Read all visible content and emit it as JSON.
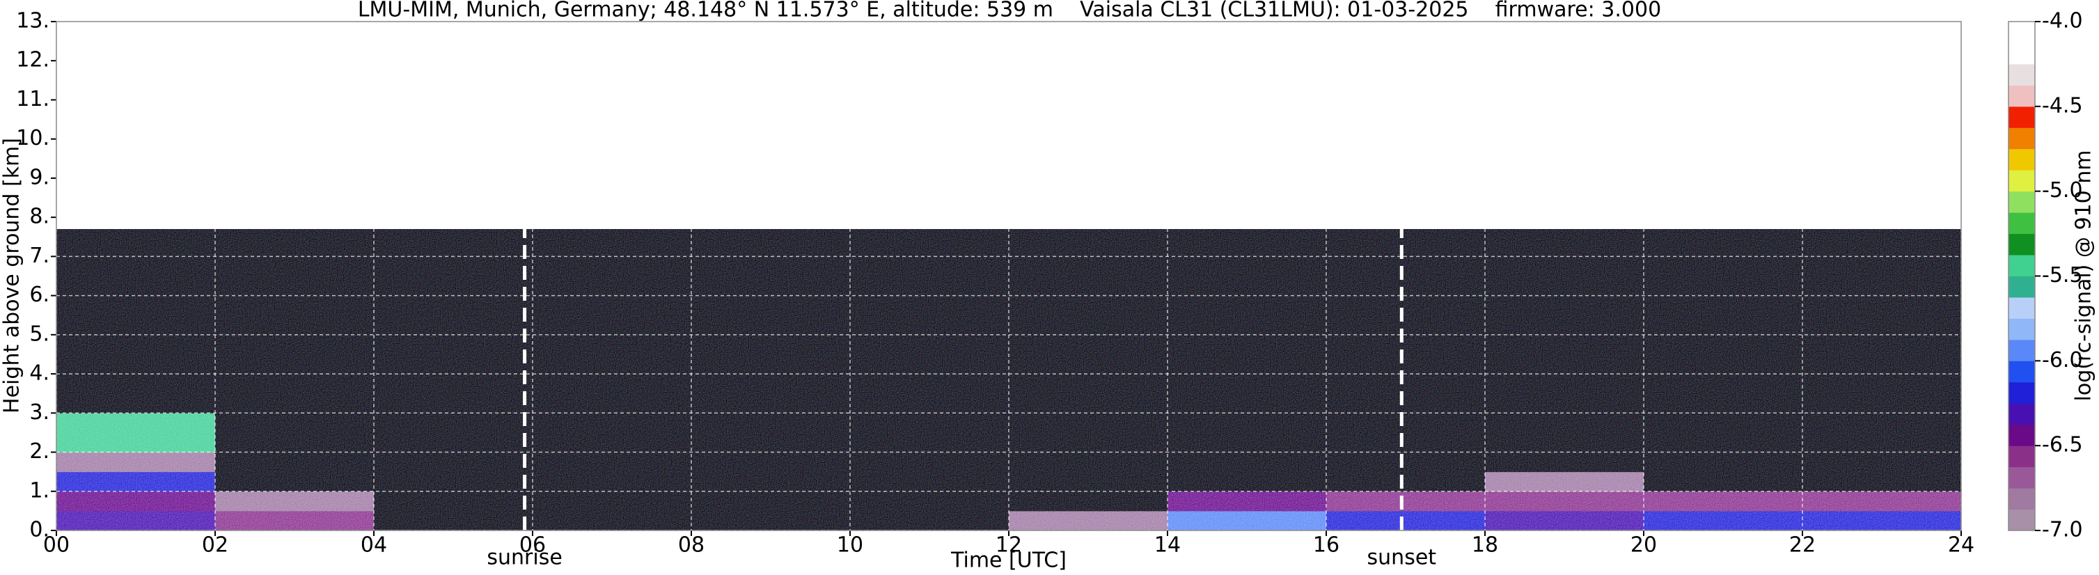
{
  "chart_data": {
    "type": "heatmap",
    "title": "LMU-MIM, Munich, Germany; 48.148° N 11.573° E, altitude: 539 m    Vaisala CL31 (CL31LMU): 01-03-2025    firmware: 3.000",
    "xlabel": "Time [UTC]",
    "ylabel": "Height above ground [km]",
    "xlim": [
      0,
      24
    ],
    "ylim": [
      0,
      13
    ],
    "xticks": [
      {
        "value": 0,
        "label": "00"
      },
      {
        "value": 2,
        "label": "02"
      },
      {
        "value": 4,
        "label": "04"
      },
      {
        "value": 6,
        "label": "06"
      },
      {
        "value": 8,
        "label": "08"
      },
      {
        "value": 10,
        "label": "10"
      },
      {
        "value": 12,
        "label": "12"
      },
      {
        "value": 14,
        "label": "14"
      },
      {
        "value": 16,
        "label": "16"
      },
      {
        "value": 18,
        "label": "18"
      },
      {
        "value": 20,
        "label": "20"
      },
      {
        "value": 22,
        "label": "22"
      },
      {
        "value": 24,
        "label": "24"
      }
    ],
    "yticks": [
      {
        "value": 0,
        "label": "0."
      },
      {
        "value": 1,
        "label": "1."
      },
      {
        "value": 2,
        "label": "2."
      },
      {
        "value": 3,
        "label": "3."
      },
      {
        "value": 4,
        "label": "4."
      },
      {
        "value": 5,
        "label": "5."
      },
      {
        "value": 6,
        "label": "6."
      },
      {
        "value": 7,
        "label": "7."
      },
      {
        "value": 8,
        "label": "8."
      },
      {
        "value": 9,
        "label": "9."
      },
      {
        "value": 10,
        "label": "10."
      },
      {
        "value": 11,
        "label": "11."
      },
      {
        "value": 12,
        "label": "12."
      },
      {
        "value": 13,
        "label": "13."
      }
    ],
    "grid": true,
    "x_edges": [
      0,
      2,
      4,
      6,
      8,
      10,
      12,
      14,
      16,
      18,
      20,
      22,
      24
    ],
    "y_edges": [
      0,
      0.5,
      1,
      1.5,
      2,
      3,
      7.7
    ],
    "z": [
      [
        -6.3,
        -6.6,
        -7.2,
        -7.5,
        -7.5,
        -7.3,
        -6.8,
        -6.0,
        -6.2,
        -6.3,
        -6.2,
        -6.2
      ],
      [
        -6.5,
        -6.8,
        -7.3,
        -7.6,
        -7.6,
        -7.6,
        -7.5,
        -6.5,
        -6.6,
        -6.6,
        -6.6,
        -6.6
      ],
      [
        -6.2,
        -7.4,
        -7.5,
        -7.6,
        -7.6,
        -7.6,
        -7.6,
        -7.4,
        -7.3,
        -6.8,
        -7.2,
        -7.2
      ],
      [
        -6.8,
        -7.5,
        -7.5,
        -7.6,
        -7.6,
        -7.6,
        -7.5,
        -7.5,
        -7.5,
        -7.5,
        -7.5,
        -7.5
      ],
      [
        -5.5,
        -7.3,
        -7.3,
        -7.4,
        -7.4,
        -7.3,
        -7.3,
        -7.3,
        -7.3,
        -7.3,
        -7.3,
        -7.3
      ],
      [
        -7.2,
        -7.2,
        -7.2,
        -7.3,
        -7.3,
        -7.2,
        -7.2,
        -7.2,
        -7.2,
        -7.2,
        -7.2,
        -7.2
      ]
    ],
    "colormap": {
      "label": "log(rc-signal) @ 910 nm",
      "clim": [
        -7,
        -4
      ],
      "under": "#000000",
      "colors": [
        "#a790a8",
        "#a07aa0",
        "#9a5898",
        "#8a3088",
        "#6a0a88",
        "#4810b0",
        "#2020d8",
        "#2050f0",
        "#5a88f8",
        "#90b8f8",
        "#b8d0f8",
        "#30b090",
        "#40d090",
        "#109020",
        "#40c040",
        "#90e060",
        "#e0f040",
        "#f0c800",
        "#f08000",
        "#f02000",
        "#f0c0c0",
        "#e8e0e0",
        "#ffffff",
        "#ffffff"
      ],
      "ticks": [
        {
          "value": -7,
          "label": "-7.0"
        },
        {
          "value": -6.5,
          "label": "-6.5"
        },
        {
          "value": -6,
          "label": "-6.0"
        },
        {
          "value": -5.5,
          "label": "-5.5"
        },
        {
          "value": -5,
          "label": "-5.0"
        },
        {
          "value": -4.5,
          "label": "-4.5"
        },
        {
          "value": -4,
          "label": "-4.0"
        }
      ]
    },
    "annotations": [
      {
        "text": "sunrise",
        "x": 5.9
      },
      {
        "text": "sunset",
        "x": 16.95
      }
    ]
  }
}
